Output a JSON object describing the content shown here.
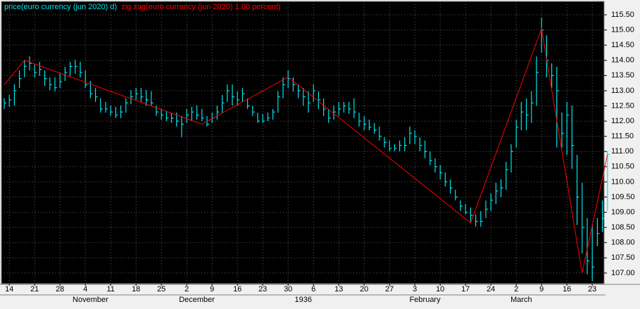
{
  "chart_data": {
    "type": "ohlc",
    "categories": [
      null,
      "14",
      null,
      null,
      null,
      null,
      "21",
      null,
      null,
      null,
      null,
      "28",
      null,
      null,
      null,
      null,
      "4",
      null,
      null,
      null,
      null,
      "11",
      null,
      null,
      null,
      null,
      "18",
      null,
      null,
      null,
      null,
      "25",
      null,
      null,
      null,
      null,
      "2",
      null,
      null,
      null,
      null,
      "9",
      null,
      null,
      null,
      null,
      "16",
      null,
      null,
      null,
      null,
      "23",
      null,
      null,
      null,
      null,
      "30",
      null,
      null,
      null,
      null,
      "6",
      null,
      null,
      null,
      null,
      "13",
      null,
      null,
      null,
      null,
      "20",
      null,
      null,
      null,
      null,
      "27",
      null,
      null,
      null,
      null,
      "3",
      null,
      null,
      null,
      null,
      "10",
      null,
      null,
      null,
      null,
      "17",
      null,
      null,
      null,
      null,
      "24",
      null,
      null,
      null,
      null,
      "2",
      null,
      null,
      null,
      null,
      "9",
      null,
      null,
      null,
      null,
      "16",
      null,
      null,
      null,
      null,
      "23",
      null,
      null,
      null
    ],
    "month_categories": [
      null,
      null,
      null,
      null,
      null,
      null,
      null,
      null,
      null,
      null,
      null,
      null,
      null,
      null,
      null,
      null,
      null,
      "November",
      null,
      null,
      null,
      null,
      null,
      null,
      null,
      null,
      null,
      null,
      null,
      null,
      null,
      null,
      null,
      null,
      null,
      null,
      null,
      null,
      "December",
      null,
      null,
      null,
      null,
      null,
      null,
      null,
      null,
      null,
      null,
      null,
      null,
      null,
      null,
      null,
      null,
      null,
      null,
      null,
      null,
      "1936",
      null,
      null,
      null,
      null,
      null,
      null,
      null,
      null,
      null,
      null,
      null,
      null,
      null,
      null,
      null,
      null,
      null,
      null,
      null,
      null,
      null,
      null,
      null,
      "February",
      null,
      null,
      null,
      null,
      null,
      null,
      null,
      null,
      null,
      null,
      null,
      null,
      null,
      null,
      null,
      null,
      null,
      null,
      "March",
      null,
      null,
      null,
      null,
      null,
      null,
      null,
      null,
      null,
      null,
      null,
      null,
      null,
      null,
      null,
      null,
      null
    ],
    "series": [
      {
        "name": "price(euro currency (jun 2020) d)",
        "color": "#00e5ee",
        "high": [
          112.75,
          112.86,
          113.21,
          113.67,
          114.02,
          114.13,
          113.86,
          113.95,
          113.67,
          113.44,
          113.44,
          113.56,
          113.79,
          113.95,
          114.02,
          113.95,
          113.67,
          113.32,
          113.09,
          112.75,
          112.63,
          112.51,
          112.47,
          112.51,
          112.75,
          113.02,
          113.09,
          113.09,
          113.02,
          112.98,
          112.51,
          112.4,
          112.33,
          112.28,
          112.28,
          112.17,
          112.4,
          112.47,
          112.51,
          112.4,
          112.17,
          112.28,
          112.51,
          112.86,
          113.21,
          113.21,
          112.98,
          113.09,
          112.75,
          112.51,
          112.28,
          112.24,
          112.28,
          112.4,
          112.98,
          113.44,
          113.67,
          113.44,
          113.21,
          113.09,
          112.98,
          113.21,
          112.98,
          112.75,
          112.4,
          112.51,
          112.63,
          112.63,
          112.63,
          112.75,
          112.28,
          112.17,
          112.05,
          111.94,
          111.82,
          111.47,
          111.36,
          111.24,
          111.36,
          111.47,
          111.82,
          111.7,
          111.47,
          111.36,
          111.01,
          110.78,
          110.55,
          110.31,
          110.08,
          109.74,
          109.39,
          109.27,
          109.16,
          108.93,
          109.04,
          109.39,
          109.62,
          109.97,
          110.08,
          110.66,
          111.24,
          112.05,
          112.63,
          112.75,
          112.98,
          114.13,
          115.41,
          114.83,
          113.9,
          113.79,
          112.28,
          112.63,
          112.51,
          110.89,
          109.97,
          108.81,
          108.58,
          108.81,
          109.39,
          111.01
        ],
        "low": [
          112.4,
          112.47,
          112.51,
          113.09,
          113.44,
          113.67,
          113.44,
          113.49,
          113.16,
          113.02,
          112.98,
          113.09,
          113.32,
          113.49,
          113.56,
          113.44,
          113.09,
          112.75,
          112.63,
          112.28,
          112.28,
          112.17,
          112.1,
          112.1,
          112.28,
          112.56,
          112.7,
          112.63,
          112.51,
          112.51,
          112.17,
          112.05,
          112.0,
          111.94,
          111.82,
          111.47,
          111.94,
          112.0,
          112.05,
          112.0,
          111.82,
          111.94,
          112.05,
          112.28,
          112.63,
          112.51,
          112.51,
          112.63,
          112.4,
          112.17,
          111.94,
          111.94,
          112.0,
          112.05,
          112.28,
          112.75,
          113.09,
          112.98,
          112.75,
          112.51,
          112.28,
          112.63,
          112.4,
          112.17,
          111.94,
          112.05,
          112.17,
          112.28,
          112.24,
          112.1,
          111.82,
          111.7,
          111.7,
          111.59,
          111.36,
          111.13,
          111.01,
          111.01,
          111.01,
          111.01,
          111.24,
          111.24,
          111.01,
          110.78,
          110.55,
          110.31,
          110.08,
          109.85,
          109.62,
          109.39,
          109.04,
          108.93,
          108.69,
          108.53,
          108.53,
          108.81,
          109.04,
          109.27,
          109.5,
          109.74,
          110.31,
          111.13,
          111.7,
          111.7,
          111.94,
          112.51,
          114.25,
          113.44,
          113.09,
          111.13,
          111.13,
          110.89,
          110.43,
          108.58,
          107.65,
          106.96,
          106.73,
          107.88,
          108.35,
          109.04
        ],
        "close": [
          112.6,
          112.7,
          113.0,
          113.4,
          113.8,
          113.9,
          113.6,
          113.7,
          113.4,
          113.2,
          113.1,
          113.3,
          113.6,
          113.8,
          113.8,
          113.6,
          113.2,
          112.9,
          112.8,
          112.4,
          112.4,
          112.3,
          112.2,
          112.3,
          112.6,
          112.8,
          112.9,
          112.8,
          112.7,
          112.6,
          112.3,
          112.2,
          112.1,
          112.1,
          112.0,
          111.9,
          112.2,
          112.3,
          112.2,
          112.1,
          111.9,
          112.1,
          112.3,
          112.6,
          113.0,
          112.8,
          112.7,
          112.9,
          112.5,
          112.3,
          112.0,
          112.0,
          112.1,
          112.3,
          112.8,
          113.2,
          113.4,
          113.2,
          113.0,
          112.8,
          112.6,
          113.0,
          112.7,
          112.4,
          112.1,
          112.3,
          112.4,
          112.5,
          112.4,
          112.3,
          112.0,
          111.9,
          111.8,
          111.7,
          111.5,
          111.3,
          111.1,
          111.1,
          111.2,
          111.2,
          111.6,
          111.5,
          111.2,
          111.0,
          110.7,
          110.5,
          110.3,
          110.0,
          109.8,
          109.5,
          109.2,
          109.0,
          108.9,
          108.7,
          108.7,
          109.1,
          109.4,
          109.7,
          109.8,
          110.4,
          111.0,
          111.8,
          112.3,
          112.2,
          112.6,
          113.6,
          115.0,
          114.0,
          113.5,
          113.0,
          111.6,
          112.2,
          111.2,
          109.5,
          108.5,
          107.4,
          107.2,
          108.3,
          108.8,
          110.9
        ]
      },
      {
        "name": "zig zag(euro currency (jun 2020) 1.00 percent)",
        "color": "#ff0000",
        "x": [
          0,
          4,
          39,
          56,
          92,
          106,
          114,
          119
        ],
        "values": [
          113.2,
          114.0,
          111.9,
          113.45,
          108.65,
          115.05,
          107.0,
          110.9
        ]
      }
    ],
    "ylim": [
      106.65,
      115.94
    ],
    "yticks": [
      {
        "value": 107,
        "label": "107.00"
      },
      {
        "value": 107.5,
        "label": "107.50"
      },
      {
        "value": 108,
        "label": "108.00"
      },
      {
        "value": 108.5,
        "label": "108.50"
      },
      {
        "value": 109,
        "label": "109.00"
      },
      {
        "value": 109.5,
        "label": "109.50"
      },
      {
        "value": 110,
        "label": "110.00"
      },
      {
        "value": 110.5,
        "label": "110.50"
      },
      {
        "value": 111,
        "label": "111.00"
      },
      {
        "value": 111.5,
        "label": "111.50"
      },
      {
        "value": 112,
        "label": "112.00"
      },
      {
        "value": 112.5,
        "label": "112.50"
      },
      {
        "value": 113,
        "label": "113.00"
      },
      {
        "value": 113.5,
        "label": "113.50"
      },
      {
        "value": 114,
        "label": "114.00"
      },
      {
        "value": 114.5,
        "label": "114.50"
      },
      {
        "value": 115,
        "label": "115.00"
      },
      {
        "value": 115.5,
        "label": "115.50"
      }
    ],
    "grid": true
  }
}
